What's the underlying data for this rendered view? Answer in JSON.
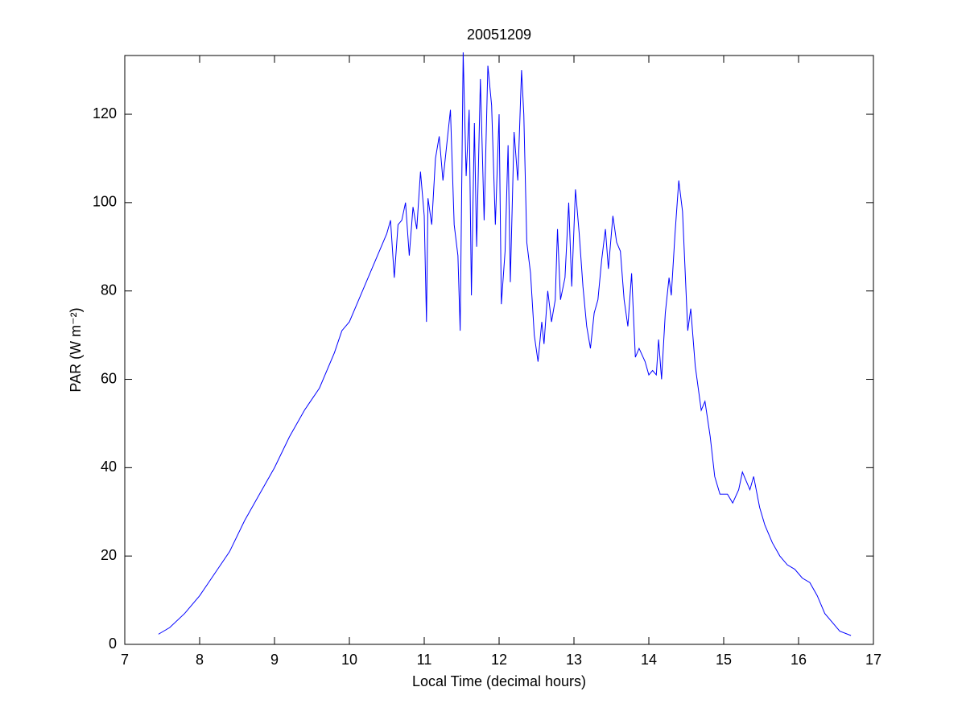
{
  "chart_data": {
    "type": "line",
    "title": "20051209",
    "xlabel": "Local Time (decimal hours)",
    "ylabel": "PAR (W m⁻²)",
    "color": "#0000ff",
    "grid": false,
    "xlim": [
      7,
      17
    ],
    "xticks": [
      7,
      8,
      9,
      10,
      11,
      12,
      13,
      14,
      15,
      16,
      17
    ],
    "ylim": [
      0,
      133.3
    ],
    "yticks": [
      0,
      20,
      40,
      60,
      80,
      100,
      120
    ],
    "x": [
      7.45,
      7.6,
      7.8,
      8.0,
      8.2,
      8.4,
      8.6,
      8.8,
      9.0,
      9.2,
      9.4,
      9.6,
      9.8,
      9.9,
      10.0,
      10.2,
      10.4,
      10.5,
      10.55,
      10.6,
      10.65,
      10.7,
      10.75,
      10.8,
      10.85,
      10.9,
      10.95,
      11.0,
      11.03,
      11.05,
      11.1,
      11.15,
      11.2,
      11.25,
      11.3,
      11.35,
      11.4,
      11.45,
      11.48,
      11.52,
      11.56,
      11.6,
      11.63,
      11.67,
      11.7,
      11.75,
      11.8,
      11.85,
      11.9,
      11.95,
      12.0,
      12.03,
      12.08,
      12.12,
      12.15,
      12.2,
      12.25,
      12.3,
      12.33,
      12.37,
      12.42,
      12.47,
      12.52,
      12.57,
      12.6,
      12.65,
      12.7,
      12.75,
      12.78,
      12.82,
      12.88,
      12.93,
      12.97,
      13.02,
      13.07,
      13.12,
      13.17,
      13.22,
      13.27,
      13.32,
      13.37,
      13.42,
      13.46,
      13.52,
      13.57,
      13.62,
      13.67,
      13.72,
      13.77,
      13.82,
      13.87,
      13.95,
      14.0,
      14.05,
      14.1,
      14.13,
      14.17,
      14.22,
      14.27,
      14.3,
      14.35,
      14.4,
      14.45,
      14.52,
      14.56,
      14.62,
      14.7,
      14.75,
      14.82,
      14.88,
      14.95,
      15.05,
      15.12,
      15.2,
      15.25,
      15.3,
      15.35,
      15.4,
      15.48,
      15.55,
      15.65,
      15.75,
      15.85,
      15.95,
      16.05,
      16.15,
      16.25,
      16.35,
      16.45,
      16.55,
      16.7
    ],
    "values": [
      2.3,
      3.8,
      7,
      11,
      16,
      21,
      28,
      34,
      40,
      47,
      53,
      58,
      66,
      71,
      73,
      81,
      89,
      93,
      96,
      83,
      95,
      96,
      100,
      88,
      99,
      94,
      107,
      97,
      73,
      101,
      95,
      110,
      115,
      105,
      113,
      121,
      95,
      88,
      71,
      134,
      106,
      121,
      79,
      118,
      90,
      128,
      96,
      131,
      122,
      95,
      120,
      77,
      89,
      113,
      82,
      116,
      105,
      130,
      120,
      91,
      84,
      70,
      64,
      73,
      68,
      80,
      73,
      78,
      94,
      78,
      83,
      100,
      81,
      103,
      93,
      81,
      72,
      67,
      75,
      78,
      87,
      94,
      85,
      97,
      91,
      89,
      78,
      72,
      84,
      65,
      67,
      64,
      61,
      62,
      61,
      69,
      60,
      75,
      83,
      79,
      93,
      105,
      98,
      71,
      76,
      63,
      53,
      55,
      47,
      38,
      34,
      34,
      32,
      35,
      39,
      37,
      35,
      38,
      31,
      27,
      23,
      20,
      18,
      17,
      15,
      14,
      11,
      7,
      5,
      3,
      2
    ]
  }
}
